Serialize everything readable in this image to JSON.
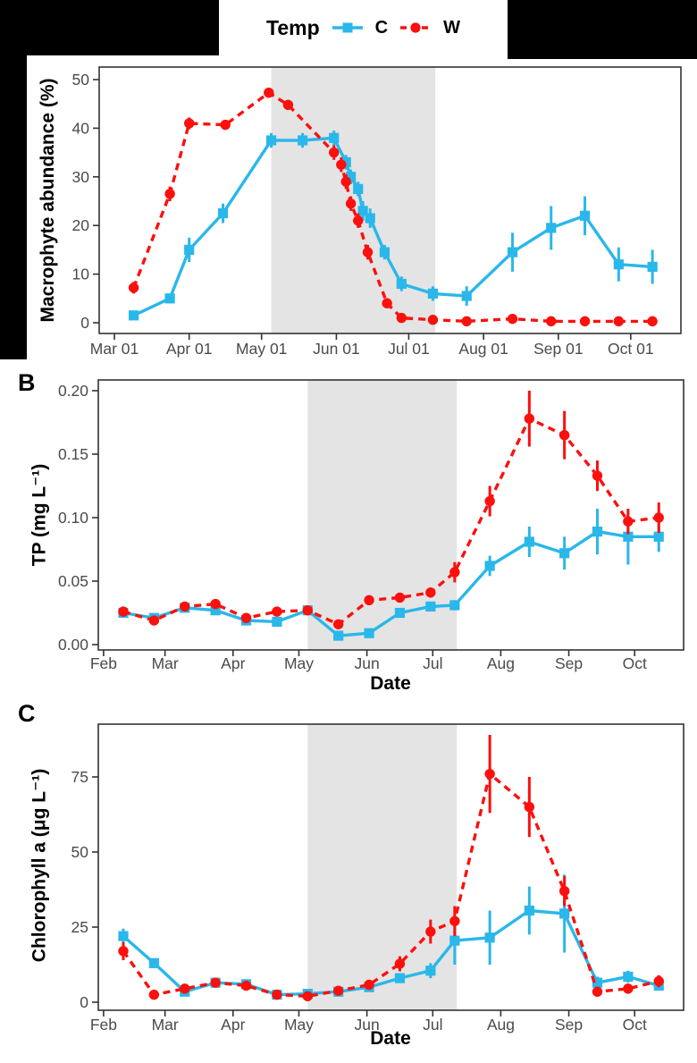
{
  "legend": {
    "title": "Temp",
    "entries": [
      {
        "label": "C",
        "color": "#2ab7ea",
        "marker": "square",
        "line_style": "solid"
      },
      {
        "label": "W",
        "color": "#fb100d",
        "marker": "circle",
        "line_style": "dashed"
      }
    ]
  },
  "panels": {
    "b_label": "B",
    "c_label": "C",
    "date_axis_label": "Date"
  },
  "colors": {
    "cold": "#2ab7ea",
    "warm": "#fb100d",
    "shaded_band": "#e4e4e4",
    "axis_text": "#4a4a4a",
    "panel_border": "#333333",
    "mask": "#000000"
  },
  "chart_data": [
    {
      "id": "A",
      "type": "line",
      "title": "",
      "ylabel": "Macrophyte abundance (%)",
      "xlabel": "",
      "ylim": [
        0,
        50
      ],
      "yticks": [
        {
          "value": 0,
          "label": "0"
        },
        {
          "value": 10,
          "label": "10"
        },
        {
          "value": 20,
          "label": "20"
        },
        {
          "value": 30,
          "label": "30"
        },
        {
          "value": 40,
          "label": "40"
        },
        {
          "value": 50,
          "label": "50"
        }
      ],
      "xticks": [
        {
          "day": 60,
          "label": "Mar 01"
        },
        {
          "day": 91,
          "label": "Apr 01"
        },
        {
          "day": 121,
          "label": "May 01"
        },
        {
          "day": 152,
          "label": "Jun 01"
        },
        {
          "day": 182,
          "label": "Jul 01"
        },
        {
          "day": 213,
          "label": "Aug 01"
        },
        {
          "day": 244,
          "label": "Sep 01"
        },
        {
          "day": 274,
          "label": "Oct 01"
        }
      ],
      "shaded_band_days": {
        "start": 125,
        "end": 193
      },
      "grid": "off",
      "series": [
        {
          "name": "C",
          "color": "#2ab7ea",
          "marker": "square",
          "line_style": "solid",
          "days": [
            68,
            83,
            91,
            105,
            125,
            138,
            151,
            156,
            158,
            161,
            163,
            166,
            172,
            179,
            192,
            206,
            225,
            241,
            255,
            269,
            283
          ],
          "values": [
            1.5,
            5,
            15,
            22.5,
            37.5,
            37.5,
            38,
            33,
            30,
            27.5,
            23,
            21.5,
            14.5,
            8,
            6,
            5.5,
            14.5,
            19.5,
            22,
            12,
            11.5
          ],
          "errors": [
            0.5,
            1,
            2.5,
            2,
            1.5,
            1.5,
            1.5,
            1.5,
            1.5,
            1.5,
            2,
            2,
            1.5,
            1.5,
            1.5,
            2,
            4,
            4.5,
            4,
            3.5,
            3.5
          ]
        },
        {
          "name": "W",
          "color": "#fb100d",
          "marker": "circle",
          "line_style": "dashed",
          "days": [
            68,
            83,
            91,
            106,
            124,
            132,
            151,
            154,
            156,
            158,
            161,
            165,
            173,
            179,
            192,
            206,
            225,
            241,
            255,
            269,
            283
          ],
          "values": [
            7.2,
            26.5,
            41,
            40.7,
            47.3,
            44.8,
            35,
            32.5,
            29,
            24.5,
            21,
            14.5,
            4,
            1,
            0.6,
            0.3,
            0.8,
            0.3,
            0.3,
            0.3,
            0.3
          ],
          "errors": [
            1.2,
            1.5,
            1.2,
            1,
            1,
            1,
            1.5,
            1.5,
            1.5,
            1.5,
            1.5,
            1.5,
            1,
            0.5,
            0.3,
            0.2,
            0.3,
            0.2,
            0.2,
            0.2,
            0.2
          ]
        }
      ]
    },
    {
      "id": "B",
      "type": "line",
      "title": "",
      "ylabel": "TP (mg L⁻¹)",
      "xlabel": "Date",
      "ylim": [
        0,
        0.2
      ],
      "yticks": [
        {
          "value": 0,
          "label": "0.00"
        },
        {
          "value": 0.05,
          "label": "0.05"
        },
        {
          "value": 0.1,
          "label": "0.10"
        },
        {
          "value": 0.15,
          "label": "0.15"
        },
        {
          "value": 0.2,
          "label": "0.20"
        }
      ],
      "xticks": [
        {
          "day": 32,
          "label": "Feb"
        },
        {
          "day": 60,
          "label": "Mar"
        },
        {
          "day": 91,
          "label": "Apr"
        },
        {
          "day": 121,
          "label": "May"
        },
        {
          "day": 152,
          "label": "Jun"
        },
        {
          "day": 182,
          "label": "Jul"
        },
        {
          "day": 213,
          "label": "Aug"
        },
        {
          "day": 244,
          "label": "Sep"
        },
        {
          "day": 274,
          "label": "Oct"
        }
      ],
      "shaded_band_days": {
        "start": 125,
        "end": 193
      },
      "grid": "off",
      "series": [
        {
          "name": "C",
          "color": "#2ab7ea",
          "marker": "square",
          "line_style": "solid",
          "days": [
            41,
            55,
            69,
            83,
            97,
            111,
            125,
            139,
            153,
            167,
            181,
            192,
            208,
            226,
            242,
            257,
            271,
            285
          ],
          "values": [
            0.025,
            0.021,
            0.029,
            0.027,
            0.019,
            0.018,
            0.027,
            0.007,
            0.009,
            0.025,
            0.03,
            0.031,
            0.062,
            0.081,
            0.072,
            0.089,
            0.085,
            0.085
          ],
          "errors": [
            0.003,
            0.002,
            0.002,
            0.002,
            0.002,
            0.002,
            0.002,
            0.002,
            0.002,
            0.003,
            0.003,
            0.004,
            0.008,
            0.012,
            0.013,
            0.018,
            0.022,
            0.012
          ]
        },
        {
          "name": "W",
          "color": "#fb100d",
          "marker": "circle",
          "line_style": "dashed",
          "days": [
            41,
            55,
            69,
            83,
            97,
            111,
            125,
            139,
            153,
            167,
            181,
            192,
            208,
            226,
            242,
            257,
            271,
            285
          ],
          "values": [
            0.026,
            0.019,
            0.03,
            0.032,
            0.021,
            0.026,
            0.027,
            0.016,
            0.035,
            0.037,
            0.041,
            0.057,
            0.113,
            0.178,
            0.165,
            0.133,
            0.097,
            0.1
          ],
          "errors": [
            0.002,
            0.003,
            0.002,
            0.003,
            0.002,
            0.003,
            0.002,
            0.003,
            0.003,
            0.003,
            0.004,
            0.008,
            0.012,
            0.022,
            0.019,
            0.012,
            0.01,
            0.012
          ]
        }
      ]
    },
    {
      "id": "C",
      "type": "line",
      "title": "",
      "ylabel": "Chlorophyll a (μg L⁻¹)",
      "xlabel": "Date",
      "ylim": [
        0,
        90
      ],
      "yticks": [
        {
          "value": 0,
          "label": "0"
        },
        {
          "value": 25,
          "label": "25"
        },
        {
          "value": 50,
          "label": "50"
        },
        {
          "value": 75,
          "label": "75"
        }
      ],
      "xticks": [
        {
          "day": 32,
          "label": "Feb"
        },
        {
          "day": 60,
          "label": "Mar"
        },
        {
          "day": 91,
          "label": "Apr"
        },
        {
          "day": 121,
          "label": "May"
        },
        {
          "day": 152,
          "label": "Jun"
        },
        {
          "day": 182,
          "label": "Jul"
        },
        {
          "day": 213,
          "label": "Aug"
        },
        {
          "day": 244,
          "label": "Sep"
        },
        {
          "day": 274,
          "label": "Oct"
        }
      ],
      "shaded_band_days": {
        "start": 125,
        "end": 193
      },
      "grid": "off",
      "series": [
        {
          "name": "C",
          "color": "#2ab7ea",
          "marker": "square",
          "line_style": "solid",
          "days": [
            41,
            55,
            69,
            83,
            97,
            111,
            125,
            139,
            153,
            167,
            181,
            192,
            208,
            226,
            242,
            257,
            271,
            285
          ],
          "values": [
            22,
            13,
            3.5,
            6.5,
            6,
            2.5,
            2.8,
            3.5,
            5,
            8,
            10.5,
            20.5,
            21.5,
            30.5,
            29.5,
            6.5,
            8.5,
            5.5
          ],
          "errors": [
            2.5,
            1.5,
            0.8,
            1,
            1,
            0.5,
            0.5,
            0.5,
            0.8,
            1.5,
            2.5,
            8,
            9,
            8,
            13,
            2,
            2,
            1.5
          ]
        },
        {
          "name": "W",
          "color": "#fb100d",
          "marker": "circle",
          "line_style": "dashed",
          "days": [
            41,
            55,
            69,
            83,
            97,
            111,
            125,
            139,
            153,
            167,
            181,
            192,
            208,
            226,
            242,
            257,
            271,
            285
          ],
          "values": [
            17,
            2.5,
            4.5,
            6.5,
            5.5,
            2.5,
            2,
            3.8,
            5.8,
            12.8,
            23.5,
            27,
            76,
            65,
            37,
            3.5,
            4.5,
            7
          ],
          "errors": [
            3,
            1,
            1,
            1,
            1,
            0.5,
            0.5,
            0.5,
            0.8,
            2.5,
            4,
            5,
            13,
            10,
            5,
            1,
            1,
            2
          ]
        }
      ]
    }
  ]
}
